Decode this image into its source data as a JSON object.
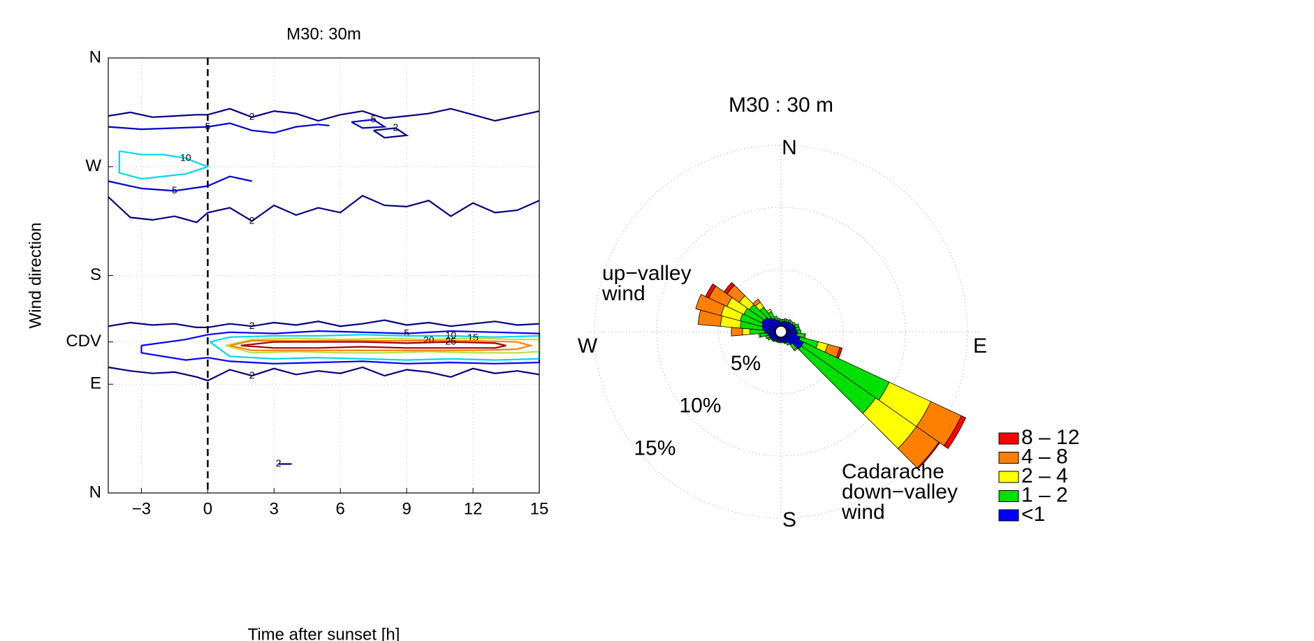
{
  "chart_data": [
    {
      "type": "contour",
      "title": "M30: 30m",
      "xlabel": "Time after sunset [h]",
      "ylabel": "Wind direction",
      "xlim": [
        -4.5,
        15
      ],
      "ylim": [
        0,
        360
      ],
      "xticks": [
        {
          "value": -3,
          "label": "−3"
        },
        0,
        3,
        6,
        9,
        12,
        15
      ],
      "yticks": [
        {
          "value": 360,
          "label": "N"
        },
        {
          "value": 270,
          "label": "W"
        },
        {
          "value": 180,
          "label": "S"
        },
        {
          "value": 125,
          "label": "CDV"
        },
        {
          "value": 90,
          "label": "E"
        },
        {
          "value": 0,
          "label": "N"
        }
      ],
      "grid": true,
      "vline": 0,
      "contours": [
        {
          "level": 2,
          "color": "#000080",
          "x": [
            -4.5,
            -3.5,
            -2.5,
            -1.5,
            -0.5,
            0,
            1,
            2,
            3,
            4,
            5,
            6,
            7,
            8,
            9,
            10,
            11,
            12,
            13,
            14,
            15
          ],
          "y": [
            312,
            315,
            311,
            312,
            313,
            313,
            318,
            311,
            316,
            314,
            308,
            313,
            316,
            310,
            312,
            314,
            318,
            313,
            308,
            312,
            316
          ]
        },
        {
          "level": 2,
          "color": "#000080",
          "x": [
            -4.5,
            -3.5,
            -2.5,
            -1.5,
            -0.5,
            0,
            1,
            2,
            3,
            4,
            5,
            6,
            7,
            8,
            9,
            10,
            11,
            12,
            13,
            14,
            15
          ],
          "y": [
            245,
            228,
            226,
            229,
            224,
            232,
            236,
            225,
            238,
            230,
            236,
            232,
            246,
            238,
            237,
            242,
            229,
            240,
            232,
            234,
            242
          ]
        },
        {
          "level": 5,
          "color": "#0000d0",
          "x": [
            -4.5,
            -3,
            -1.5,
            0,
            1,
            2,
            3,
            4,
            5,
            5.5
          ],
          "y": [
            303,
            301,
            302,
            303,
            306,
            300,
            298,
            303,
            305,
            304
          ]
        },
        {
          "level": 5,
          "color": "#0000d0",
          "x": [
            -4.5,
            -3,
            -1.5,
            0,
            1,
            2
          ],
          "y": [
            258,
            252,
            250,
            254,
            262,
            258
          ]
        },
        {
          "level": 10,
          "color": "#00d8e8",
          "x": [
            -4,
            -3,
            -2,
            -1,
            0,
            -1,
            -2,
            -3,
            -4,
            -4
          ],
          "y": [
            283,
            280,
            280,
            277,
            270,
            264,
            262,
            260,
            265,
            283
          ]
        },
        {
          "level": 2,
          "color": "#000080",
          "x": [
            7.5,
            8.5,
            9,
            8,
            7.5
          ],
          "y": [
            300,
            302,
            296,
            294,
            300
          ]
        },
        {
          "level": 5,
          "color": "#0000d0",
          "x": [
            6.5,
            7.5,
            8,
            7,
            6.5
          ],
          "y": [
            307,
            309,
            303,
            302,
            307
          ]
        },
        {
          "level": 2,
          "color": "#000080",
          "x": [
            -4.5,
            -3.5,
            -2.5,
            -1.5,
            -0.5,
            0,
            1,
            2,
            3,
            4,
            5,
            6,
            7,
            8,
            9,
            10,
            11,
            12,
            13,
            14,
            15
          ],
          "y": [
            138,
            141,
            139,
            140,
            137,
            137,
            140,
            138,
            141,
            139,
            142,
            138,
            140,
            143,
            139,
            141,
            138,
            140,
            142,
            139,
            140
          ]
        },
        {
          "level": 2,
          "color": "#000080",
          "x": [
            -4.5,
            -3.5,
            -2.5,
            -1.5,
            -0.5,
            0,
            1,
            2,
            3,
            4,
            5,
            6,
            7,
            8,
            9,
            10,
            11,
            12,
            13,
            14,
            15
          ],
          "y": [
            104,
            101,
            99,
            100,
            96,
            93,
            102,
            97,
            103,
            98,
            101,
            99,
            104,
            97,
            102,
            100,
            96,
            103,
            99,
            101,
            98
          ]
        },
        {
          "level": 5,
          "color": "#0000ff",
          "x": [
            -3,
            -1,
            0,
            1,
            3,
            5,
            7,
            9,
            11,
            13,
            15,
            15,
            13,
            11,
            9,
            7,
            5,
            3,
            1,
            0,
            -1,
            -3,
            -3
          ],
          "y": [
            122,
            127,
            131,
            133,
            132,
            134,
            133,
            132,
            134,
            133,
            132,
            108,
            107,
            108,
            107,
            109,
            108,
            107,
            109,
            112,
            110,
            116,
            122
          ]
        },
        {
          "level": 10,
          "color": "#00d8e8",
          "x": [
            0.1,
            1,
            3,
            5,
            7,
            9,
            11,
            13,
            15,
            15,
            13,
            11,
            9,
            7,
            5,
            3,
            1,
            0.1
          ],
          "y": [
            125,
            129,
            130,
            130,
            131,
            130,
            130,
            129,
            130,
            111,
            110,
            111,
            110,
            111,
            112,
            111,
            113,
            125
          ]
        },
        {
          "level": 15,
          "color": "#b8e040",
          "x": [
            0.8,
            2,
            4,
            6,
            8,
            10,
            12,
            14,
            15,
            15,
            14,
            12,
            10,
            8,
            6,
            4,
            2,
            0.8
          ],
          "y": [
            122,
            127,
            128,
            127,
            128,
            127,
            128,
            127,
            127,
            117,
            116,
            116,
            117,
            116,
            116,
            117,
            116,
            122
          ]
        },
        {
          "level": 20,
          "color": "#ff8000",
          "x": [
            1,
            2,
            4,
            6,
            8,
            10,
            12,
            14,
            14.6,
            14,
            12,
            10,
            8,
            6,
            4,
            2,
            1
          ],
          "y": [
            122,
            126,
            126,
            126,
            126,
            126,
            126,
            125,
            122,
            119,
            118,
            118,
            118,
            118,
            118,
            118,
            122
          ]
        },
        {
          "level": 25,
          "color": "#a00000",
          "x": [
            1.5,
            3,
            5,
            7,
            9,
            11,
            13,
            13.5,
            13,
            11,
            9,
            7,
            5,
            3,
            1.5
          ],
          "y": [
            122,
            125,
            125,
            125,
            124,
            125,
            124,
            122,
            120,
            120,
            120,
            121,
            120,
            120,
            122
          ]
        },
        {
          "level": 2,
          "color": "#000080",
          "x": [
            3.2,
            3.8
          ],
          "y": [
            24,
            24
          ]
        }
      ]
    },
    {
      "type": "windrose",
      "title": "M30 : 30 m",
      "rlim": [
        0,
        15
      ],
      "rticks": [
        {
          "value": 5,
          "label": "5%"
        },
        {
          "value": 10,
          "label": "10%"
        },
        {
          "value": 15,
          "label": "15%"
        }
      ],
      "compass": [
        "N",
        "E",
        "S",
        "W"
      ],
      "annotations": [
        [
          "up−valley",
          "wind"
        ],
        [
          "Cadarache",
          "down−valley",
          "wind"
        ]
      ],
      "directions": [
        0,
        10,
        20,
        30,
        40,
        50,
        60,
        70,
        80,
        90,
        100,
        110,
        120,
        130,
        140,
        150,
        160,
        170,
        180,
        190,
        200,
        210,
        220,
        230,
        240,
        250,
        260,
        270,
        280,
        290,
        300,
        310,
        320,
        330,
        340,
        350
      ],
      "series": [
        {
          "name": "<1",
          "color": "#0000ff",
          "values": [
            0.8,
            0.8,
            0.9,
            0.9,
            1.0,
            1.0,
            1.1,
            1.2,
            1.2,
            1.3,
            1.3,
            1.6,
            2.0,
            2.0,
            1.3,
            1.0,
            0.9,
            0.8,
            0.8,
            0.8,
            0.8,
            0.8,
            0.9,
            0.9,
            1.0,
            1.0,
            1.1,
            1.3,
            1.5,
            1.6,
            1.7,
            1.6,
            1.4,
            1.2,
            1.0,
            0.9
          ]
        },
        {
          "name": "1 – 2",
          "color": "#00e000",
          "values": [
            0.2,
            0.2,
            0.2,
            0.2,
            0.2,
            0.2,
            0.2,
            0.3,
            0.3,
            0.3,
            0.6,
            1.5,
            7.6,
            7.3,
            0.5,
            0.2,
            0.1,
            0.1,
            0.1,
            0.1,
            0.1,
            0.1,
            0.1,
            0.1,
            0.2,
            0.3,
            0.6,
            1.2,
            1.8,
            1.8,
            1.6,
            1.5,
            1.0,
            0.6,
            0.3,
            0.2
          ]
        },
        {
          "name": "2 – 4",
          "color": "#ffff00",
          "values": [
            0,
            0,
            0,
            0,
            0,
            0,
            0,
            0,
            0,
            0,
            0.1,
            0.8,
            3.7,
            4.0,
            0.1,
            0,
            0,
            0,
            0,
            0,
            0,
            0,
            0,
            0,
            0,
            0,
            0.1,
            0.6,
            1.6,
            1.6,
            1.5,
            1.0,
            0.5,
            0.2,
            0,
            0
          ]
        },
        {
          "name": "4 – 8",
          "color": "#ff8000",
          "values": [
            0,
            0,
            0,
            0,
            0,
            0,
            0,
            0,
            0,
            0,
            0,
            1.0,
            2.7,
            2.2,
            0,
            0,
            0,
            0,
            0,
            0,
            0,
            0,
            0,
            0,
            0,
            0,
            0,
            0.9,
            1.8,
            2.1,
            1.6,
            1.2,
            0.3,
            0,
            0,
            0
          ]
        },
        {
          "name": "8 – 12",
          "color": "#ff0000",
          "values": [
            0,
            0,
            0,
            0,
            0,
            0,
            0,
            0,
            0,
            0,
            0,
            0.2,
            0.4,
            0.1,
            0,
            0,
            0,
            0,
            0,
            0,
            0,
            0,
            0,
            0,
            0,
            0,
            0,
            0,
            0,
            0,
            0.3,
            0.3,
            0,
            0,
            0,
            0
          ]
        }
      ]
    }
  ]
}
